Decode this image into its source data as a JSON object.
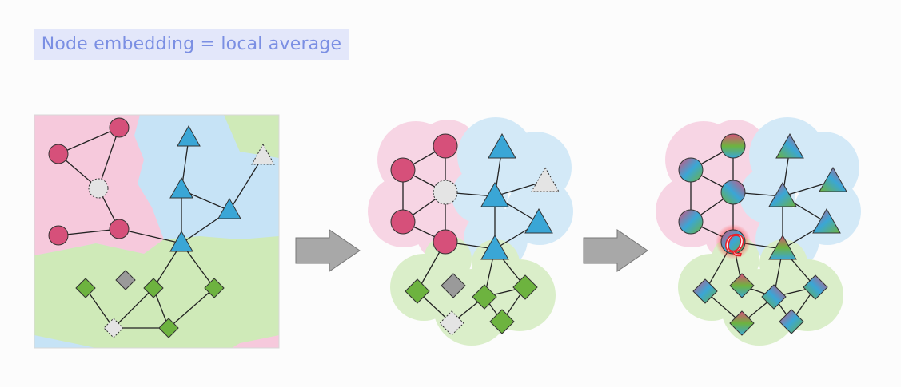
{
  "slide": {
    "title": "Node embedding = local average",
    "annotation_mark": "Q"
  },
  "colors": {
    "title_bg": "#e3e7fa",
    "title_text": "#7b8fe3",
    "pink_region": "#f6c9dc",
    "blue_region": "#c6e3f6",
    "green_region": "#cfeab8",
    "pink_node": "#d6507a",
    "blue_node": "#3aa6d6",
    "green_node": "#6db33f",
    "gray_node": "#9a9a9a",
    "light_node": "#e4e4e4",
    "arrow": "#a8a8a8",
    "highlight": "#e8202a"
  },
  "legend_of_shapes": [
    "circle",
    "triangle",
    "diamond"
  ]
}
